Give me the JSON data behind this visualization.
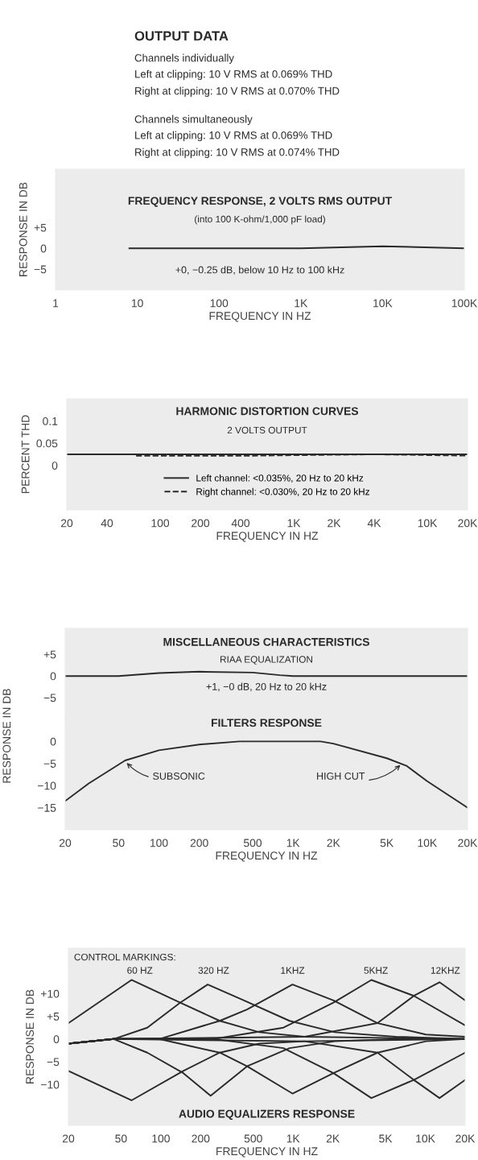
{
  "chart_data": [
    {
      "type": "other",
      "title": "OUTPUT DATA",
      "annotations": [
        "Channels individually",
        "Left at clipping: 10 V RMS at 0.069% THD",
        "Right at clipping: 10 V RMS at 0.070% THD",
        "Channels simultaneously",
        "Left at clipping: 10 V RMS at 0.069% THD",
        "Right at clipping: 10 V RMS at 0.074% THD"
      ]
    },
    {
      "type": "line",
      "title": "FREQUENCY RESPONSE, 2 VOLTS RMS OUTPUT",
      "subtitle": "(into 100 K-ohm/1,000 pF load)",
      "xlabel": "FREQUENCY IN HZ",
      "ylabel": "RESPONSE IN DB",
      "log": "x",
      "xlim": [
        1,
        100000
      ],
      "ylim": [
        -10,
        19
      ],
      "xticks": [
        1,
        10,
        100,
        {
          "value": 1000,
          "label": "1K"
        },
        {
          "value": 10000,
          "label": "10K"
        },
        {
          "value": 100000,
          "label": "100K"
        }
      ],
      "yticks": [
        {
          "value": 5,
          "label": "+5"
        },
        0,
        {
          "value": -5,
          "label": "−5"
        }
      ],
      "grid": false,
      "marker": "none",
      "line_style": "solid",
      "annotations": [
        "+0, −0.25 dB, below 10 Hz to 100 kHz"
      ],
      "series": [
        {
          "color": "#2a2a2a",
          "x": [
            8,
            100,
            1000,
            10000,
            100000
          ],
          "values": [
            0,
            0,
            0,
            0.5,
            0
          ]
        }
      ]
    },
    {
      "type": "line",
      "title": "HARMONIC DISTORTION CURVES",
      "subtitle": "2 VOLTS OUTPUT",
      "xlabel": "FREQUENCY IN HZ",
      "ylabel": "PERCENT THD",
      "log": "x",
      "xlim": [
        20,
        20000
      ],
      "ylim": [
        -0.1,
        0.15
      ],
      "xticks": [
        20,
        40,
        100,
        200,
        400,
        {
          "value": 1000,
          "label": "1K"
        },
        {
          "value": 2000,
          "label": "2K"
        },
        {
          "value": 4000,
          "label": "4K"
        },
        {
          "value": 10000,
          "label": "10K"
        },
        {
          "value": 20000,
          "label": "20K"
        }
      ],
      "yticks": [
        0.1,
        0.05,
        0
      ],
      "grid": false,
      "marker": "none",
      "legend": "bottom",
      "series": [
        {
          "name": "Left channel: <0.035%, 20 Hz to 20 kHz",
          "color": "#2a2a2a",
          "line_style": "solid",
          "x": [
            20,
            100,
            1000,
            4000,
            20000
          ],
          "values": [
            0.025,
            0.025,
            0.025,
            0.025,
            0.025
          ]
        },
        {
          "name": "Right channel: <0.030%, 20 Hz to 20 kHz",
          "color": "#2a2a2a",
          "line_style": "dashed",
          "x": [
            66,
            500,
            4000,
            20000
          ],
          "values": [
            0.022,
            0.022,
            0.025,
            0.022
          ]
        }
      ]
    },
    {
      "type": "line",
      "title": "MISCELLANEOUS CHARACTERISTICS",
      "subtitle": "RIAA EQUALIZATION",
      "log": "x",
      "xlim": [
        20,
        20000
      ],
      "ylim": [
        -10,
        11
      ],
      "tick_labels": "y",
      "yticks": [
        {
          "value": 5,
          "label": "+5"
        },
        0,
        {
          "value": -5,
          "label": "−5"
        }
      ],
      "grid": false,
      "marker": "none",
      "line_style": "solid",
      "annotations": [
        "+1, −0 dB, 20 Hz to 20 kHz"
      ],
      "series": [
        {
          "color": "#2a2a2a",
          "x": [
            20,
            50,
            100,
            200,
            500,
            800,
            1000,
            2000,
            5000,
            20000
          ],
          "values": [
            0,
            0,
            0.7,
            1,
            0.8,
            0.2,
            0,
            0,
            0,
            0
          ]
        }
      ]
    },
    {
      "type": "line",
      "title": "FILTERS RESPONSE",
      "xlabel": "FREQUENCY IN HZ",
      "ylabel": "RESPONSE IN DB",
      "log": "x",
      "xlim": [
        20,
        20000
      ],
      "ylim": [
        -20,
        5
      ],
      "xticks": [
        20,
        50,
        100,
        200,
        500,
        {
          "value": 1000,
          "label": "1K"
        },
        {
          "value": 2000,
          "label": "2K"
        },
        {
          "value": 5000,
          "label": "5K"
        },
        {
          "value": 10000,
          "label": "10K"
        },
        {
          "value": 20000,
          "label": "20K"
        }
      ],
      "yticks": [
        0,
        {
          "value": -5,
          "label": "−5"
        },
        {
          "value": -10,
          "label": "−10"
        },
        {
          "value": -15,
          "label": "−15"
        }
      ],
      "grid": false,
      "marker": "none",
      "line_style": "solid",
      "annotations": [
        {
          "text": "SUBSONIC",
          "x": 56,
          "y": -4.5
        },
        {
          "text": "HIGH CUT",
          "x": 6500,
          "y": -5
        }
      ],
      "series": [
        {
          "color": "#2a2a2a",
          "x": [
            20,
            30,
            56,
            100,
            200,
            400,
            1000,
            1600,
            2000,
            5000,
            7000,
            10000,
            20000
          ],
          "values": [
            -13.5,
            -9.5,
            -4.3,
            -2,
            -0.7,
            0,
            0,
            0,
            -0.5,
            -3.8,
            -5.5,
            -9,
            -15
          ]
        }
      ]
    },
    {
      "type": "line",
      "title": "AUDIO EQUALIZERS RESPONSE",
      "xlabel": "FREQUENCY IN HZ",
      "ylabel": "RESPONSE IN DB",
      "log": "x",
      "xlim": [
        20,
        20000
      ],
      "ylim": [
        -19,
        20
      ],
      "xticks": [
        20,
        50,
        100,
        200,
        500,
        {
          "value": 1000,
          "label": "1K"
        },
        {
          "value": 2000,
          "label": "2K"
        },
        {
          "value": 5000,
          "label": "5K"
        },
        {
          "value": 10000,
          "label": "10K"
        },
        {
          "value": 20000,
          "label": "20K"
        }
      ],
      "yticks": [
        {
          "value": 10,
          "label": "+10"
        },
        {
          "value": 5,
          "label": "+5"
        },
        0,
        {
          "value": -5,
          "label": "−5"
        },
        {
          "value": -10,
          "label": "−10"
        }
      ],
      "grid": false,
      "marker": "none",
      "line_style": "solid",
      "annotations": [
        "CONTROL MARKINGS:",
        "60 HZ",
        "320 HZ",
        "1KHZ",
        "5KHZ",
        "12KHZ"
      ],
      "series": [
        {
          "color": "#2a2a2a",
          "x": [
            20,
            60,
            140,
            279,
            555,
            1224,
            20000
          ],
          "values": [
            3.5,
            13,
            8,
            4,
            1.5,
            0.5,
            0
          ]
        },
        {
          "color": "#2a2a2a",
          "x": [
            20,
            60,
            148,
            279,
            555,
            1224,
            20000
          ],
          "values": [
            -7,
            -13.5,
            -7,
            -3,
            -1,
            -0.5,
            0
          ]
        },
        {
          "color": "#2a2a2a",
          "x": [
            20,
            44,
            79,
            140,
            226,
            425,
            940,
            2070,
            5970,
            20000
          ],
          "values": [
            -1,
            0,
            2.5,
            8,
            12,
            8.5,
            4,
            1.5,
            0.5,
            0
          ]
        },
        {
          "color": "#2a2a2a",
          "x": [
            20,
            44,
            79,
            148,
            238,
            449,
            940,
            2070,
            5970,
            20000
          ],
          "values": [
            -1,
            0,
            -3,
            -7.5,
            -12.5,
            -6,
            -2,
            -0.5,
            0,
            0
          ]
        },
        {
          "color": "#2a2a2a",
          "x": [
            20,
            44,
            97,
            279,
            449,
            990,
            2020,
            4350,
            10100,
            20000
          ],
          "values": [
            -1,
            0,
            0,
            4,
            6.5,
            12,
            8.5,
            3.5,
            1,
            0.5
          ]
        },
        {
          "color": "#2a2a2a",
          "x": [
            20,
            44,
            97,
            279,
            449,
            990,
            2020,
            4350,
            10100,
            20000
          ],
          "values": [
            -1,
            0,
            0,
            -3,
            -6,
            -12,
            -7.5,
            -3,
            -0.5,
            0
          ]
        },
        {
          "color": "#2a2a2a",
          "x": [
            20,
            44,
            251,
            845,
            2020,
            3910,
            8190,
            20000
          ],
          "values": [
            -1,
            0,
            0,
            2.5,
            8,
            13,
            9.5,
            3
          ]
        },
        {
          "color": "#2a2a2a",
          "x": [
            20,
            44,
            251,
            845,
            2020,
            3910,
            8190,
            20000
          ],
          "values": [
            -1,
            0,
            0,
            -2,
            -7.5,
            -13,
            -9,
            -3
          ]
        },
        {
          "color": "#2a2a2a",
          "x": [
            20,
            44,
            1224,
            4350,
            8190,
            12800,
            20000
          ],
          "values": [
            -1,
            0,
            0.5,
            3.5,
            9.5,
            12.5,
            8.5
          ]
        },
        {
          "color": "#2a2a2a",
          "x": [
            20,
            44,
            1224,
            4350,
            8190,
            12800,
            20000
          ],
          "values": [
            -1,
            0,
            -0.5,
            -3,
            -9,
            -13,
            -9
          ]
        }
      ]
    }
  ]
}
